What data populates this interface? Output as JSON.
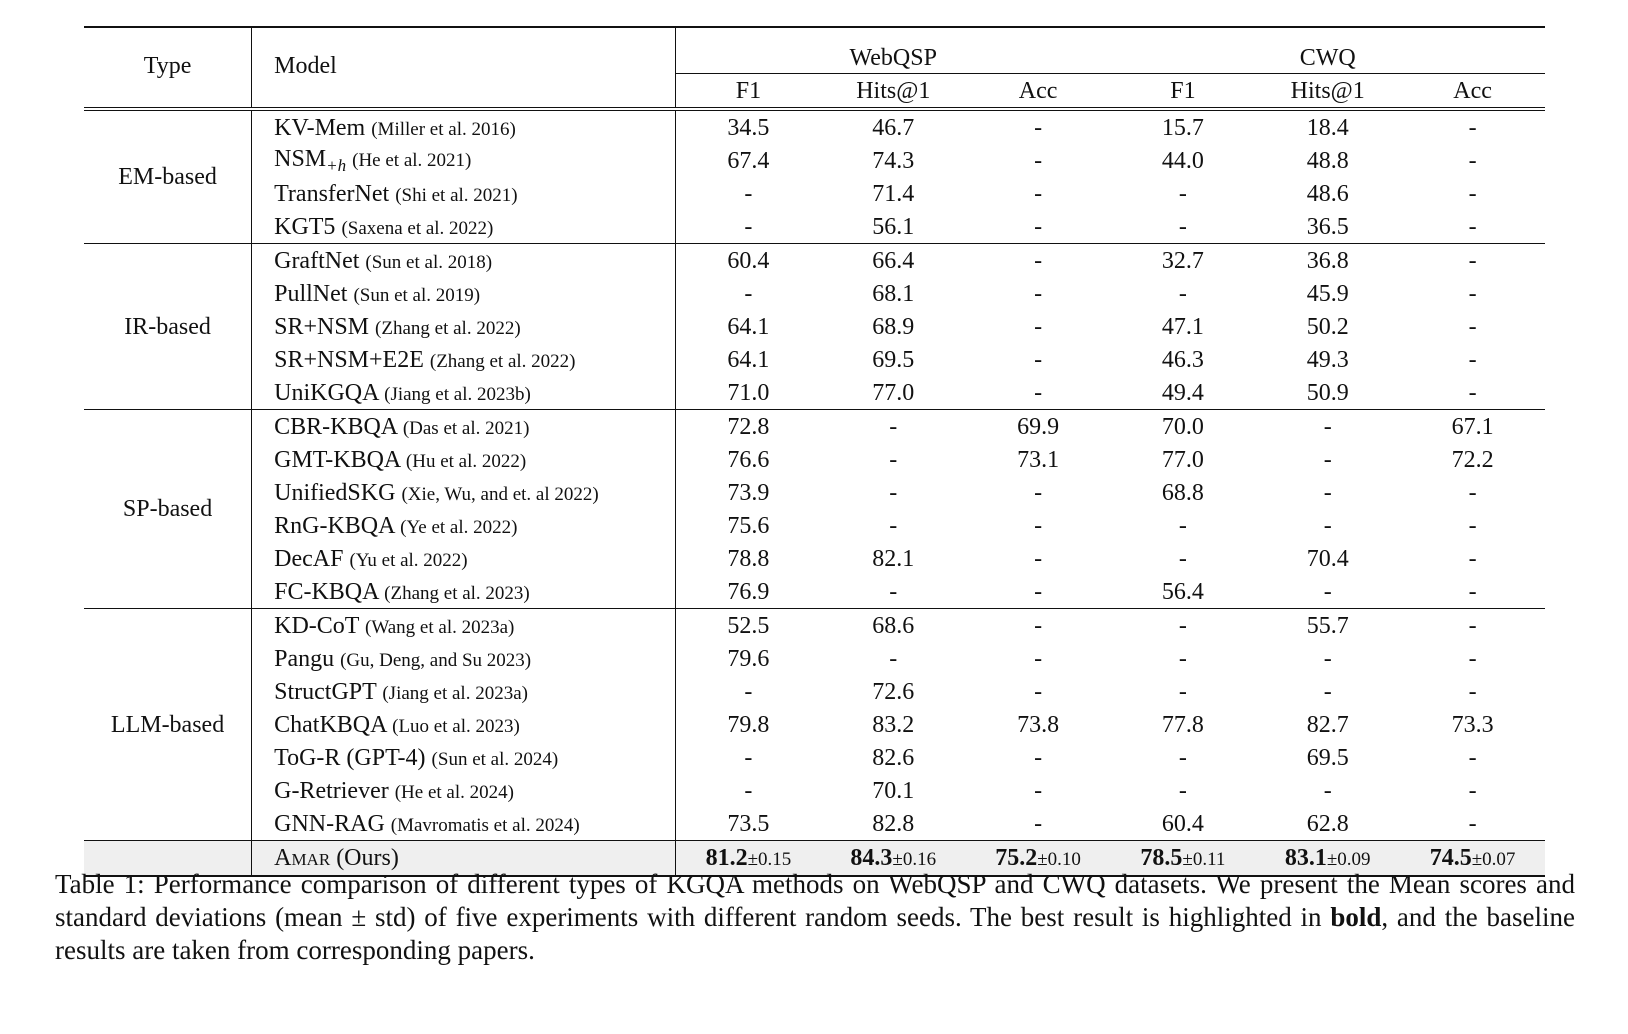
{
  "header": {
    "type": "Type",
    "model": "Model",
    "webqsp": "WebQSP",
    "cwq": "CWQ",
    "metrics": [
      "F1",
      "Hits@1",
      "Acc",
      "F1",
      "Hits@1",
      "Acc"
    ]
  },
  "groups": [
    {
      "type": "EM-based",
      "rows": [
        {
          "model": "KV-Mem",
          "cite": "(Miller et al. 2016)",
          "values": [
            "34.5",
            "46.7",
            "-",
            "15.7",
            "18.4",
            "-"
          ]
        },
        {
          "model": "NSM",
          "sub": "+h",
          "cite": "(He et al. 2021)",
          "values": [
            "67.4",
            "74.3",
            "-",
            "44.0",
            "48.8",
            "-"
          ]
        },
        {
          "model": "TransferNet",
          "cite": "(Shi et al. 2021)",
          "values": [
            "-",
            "71.4",
            "-",
            "-",
            "48.6",
            "-"
          ]
        },
        {
          "model": "KGT5",
          "cite": "(Saxena et al. 2022)",
          "values": [
            "-",
            "56.1",
            "-",
            "-",
            "36.5",
            "-"
          ]
        }
      ]
    },
    {
      "type": "IR-based",
      "rows": [
        {
          "model": "GraftNet",
          "cite": "(Sun et al. 2018)",
          "values": [
            "60.4",
            "66.4",
            "-",
            "32.7",
            "36.8",
            "-"
          ]
        },
        {
          "model": "PullNet",
          "cite": "(Sun et al. 2019)",
          "values": [
            "-",
            "68.1",
            "-",
            "-",
            "45.9",
            "-"
          ]
        },
        {
          "model": "SR+NSM",
          "cite": "(Zhang et al. 2022)",
          "values": [
            "64.1",
            "68.9",
            "-",
            "47.1",
            "50.2",
            "-"
          ]
        },
        {
          "model": "SR+NSM+E2E",
          "cite": "(Zhang et al. 2022)",
          "values": [
            "64.1",
            "69.5",
            "-",
            "46.3",
            "49.3",
            "-"
          ]
        },
        {
          "model": "UniKGQA",
          "cite": "(Jiang et al. 2023b)",
          "values": [
            "71.0",
            "77.0",
            "-",
            "49.4",
            "50.9",
            "-"
          ]
        }
      ]
    },
    {
      "type": "SP-based",
      "rows": [
        {
          "model": "CBR-KBQA",
          "cite": "(Das et al. 2021)",
          "values": [
            "72.8",
            "-",
            "69.9",
            "70.0",
            "-",
            "67.1"
          ]
        },
        {
          "model": "GMT-KBQA",
          "cite": "(Hu et al. 2022)",
          "values": [
            "76.6",
            "-",
            "73.1",
            "77.0",
            "-",
            "72.2"
          ]
        },
        {
          "model": "UnifiedSKG",
          "cite": "(Xie, Wu, and et. al 2022)",
          "values": [
            "73.9",
            "-",
            "-",
            "68.8",
            "-",
            "-"
          ]
        },
        {
          "model": "RnG-KBQA",
          "cite": "(Ye et al. 2022)",
          "values": [
            "75.6",
            "-",
            "-",
            "-",
            "-",
            "-"
          ]
        },
        {
          "model": "DecAF",
          "cite": "(Yu et al. 2022)",
          "values": [
            "78.8",
            "82.1",
            "-",
            "-",
            "70.4",
            "-"
          ]
        },
        {
          "model": "FC-KBQA",
          "cite": "(Zhang et al. 2023)",
          "values": [
            "76.9",
            "-",
            "-",
            "56.4",
            "-",
            "-"
          ]
        }
      ]
    },
    {
      "type": "LLM-based",
      "rows": [
        {
          "model": "KD-CoT",
          "cite": "(Wang et al. 2023a)",
          "values": [
            "52.5",
            "68.6",
            "-",
            "-",
            "55.7",
            "-"
          ]
        },
        {
          "model": "Pangu",
          "cite": "(Gu, Deng, and Su 2023)",
          "values": [
            "79.6",
            "-",
            "-",
            "-",
            "-",
            "-"
          ]
        },
        {
          "model": "StructGPT",
          "cite": "(Jiang et al. 2023a)",
          "values": [
            "-",
            "72.6",
            "-",
            "-",
            "-",
            "-"
          ]
        },
        {
          "model": "ChatKBQA",
          "cite": "(Luo et al. 2023)",
          "values": [
            "79.8",
            "83.2",
            "73.8",
            "77.8",
            "82.7",
            "73.3"
          ]
        },
        {
          "model": "ToG-R (GPT-4)",
          "cite": "(Sun et al. 2024)",
          "values": [
            "-",
            "82.6",
            "-",
            "-",
            "69.5",
            "-"
          ]
        },
        {
          "model": "G-Retriever",
          "cite": "(He et al. 2024)",
          "values": [
            "-",
            "70.1",
            "-",
            "-",
            "-",
            "-"
          ]
        },
        {
          "model": "GNN-RAG",
          "cite": "(Mavromatis et al. 2024)",
          "values": [
            "73.5",
            "82.8",
            "-",
            "60.4",
            "62.8",
            "-"
          ]
        }
      ]
    }
  ],
  "ours": {
    "model": "Amar",
    "suffix": " (Ours)",
    "means": [
      "81.2",
      "84.3",
      "75.2",
      "78.5",
      "83.1",
      "74.5"
    ],
    "stds": [
      "±0.15",
      "±0.16",
      "±0.10",
      "±0.11",
      "±0.09",
      "±0.07"
    ]
  },
  "caption": {
    "part1": "Table 1: Performance comparison of different types of KGQA methods on WebQSP and CWQ datasets. We present the Mean scores and standard deviations (mean ± std) of five experiments with different random seeds. The best result is highlighted in ",
    "bold": "bold",
    "part2": ", and the baseline results are taken from corresponding papers."
  }
}
